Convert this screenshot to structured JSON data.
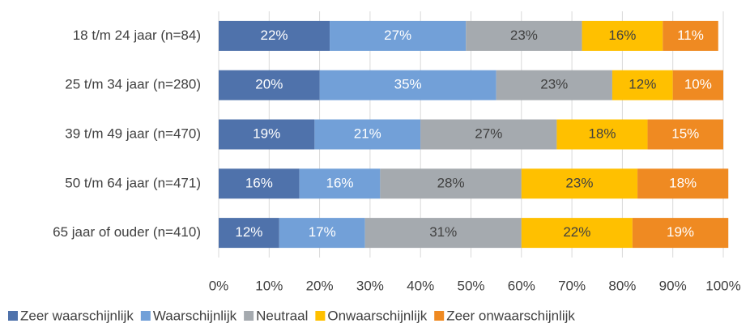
{
  "chart_data": {
    "type": "stacked-bar-horizontal",
    "categories": [
      "18 t/m 24 jaar (n=84)",
      "25 t/m 34 jaar (n=280)",
      "39 t/m 49 jaar (n=470)",
      "50 t/m 64 jaar (n=471)",
      "65 jaar of ouder (n=410)"
    ],
    "series": [
      {
        "name": "Zeer waarschijnlijk",
        "color": "#4f72ab",
        "values": [
          22,
          20,
          19,
          16,
          12
        ],
        "value_labels": [
          "22%",
          "20%",
          "19%",
          "16%",
          "12%"
        ]
      },
      {
        "name": "Waarschijnlijk",
        "color": "#72a0d8",
        "values": [
          27,
          35,
          21,
          16,
          17
        ],
        "value_labels": [
          "27%",
          "35%",
          "21%",
          "16%",
          "17%"
        ]
      },
      {
        "name": "Neutraal",
        "color": "#a5aaaf",
        "values": [
          23,
          23,
          27,
          28,
          31
        ],
        "value_labels": [
          "23%",
          "23%",
          "27%",
          "28%",
          "31%"
        ]
      },
      {
        "name": "Onwaarschijnlijk",
        "color": "#ffc000",
        "values": [
          16,
          12,
          18,
          23,
          22
        ],
        "value_labels": [
          "16%",
          "12%",
          "18%",
          "23%",
          "22%"
        ]
      },
      {
        "name": "Zeer onwaarschijnlijk",
        "color": "#ef8a22",
        "values": [
          11,
          10,
          15,
          18,
          19
        ],
        "value_labels": [
          "11%",
          "10%",
          "15%",
          "18%",
          "19%"
        ]
      }
    ],
    "xlim": [
      0,
      100
    ],
    "xticks": [
      {
        "value": 0,
        "label": "0%"
      },
      {
        "value": 10,
        "label": "10%"
      },
      {
        "value": 20,
        "label": "20%"
      },
      {
        "value": 30,
        "label": "30%"
      },
      {
        "value": 40,
        "label": "40%"
      },
      {
        "value": 50,
        "label": "50%"
      },
      {
        "value": 60,
        "label": "60%"
      },
      {
        "value": 70,
        "label": "70%"
      },
      {
        "value": 80,
        "label": "80%"
      },
      {
        "value": 90,
        "label": "90%"
      },
      {
        "value": 100,
        "label": "100%"
      }
    ],
    "grid": true,
    "legend": "bottom"
  }
}
